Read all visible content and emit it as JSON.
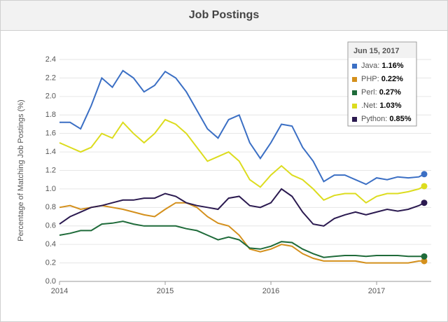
{
  "chart_data": {
    "type": "line",
    "title": "Job Postings",
    "y_label": "Percentage of Matching Job Postings (%)",
    "x": [
      2014.0,
      2014.1,
      2014.2,
      2014.3,
      2014.4,
      2014.5,
      2014.6,
      2014.7,
      2014.8,
      2014.9,
      2015.0,
      2015.1,
      2015.2,
      2015.3,
      2015.4,
      2015.5,
      2015.6,
      2015.7,
      2015.8,
      2015.9,
      2016.0,
      2016.1,
      2016.2,
      2016.3,
      2016.4,
      2016.5,
      2016.6,
      2016.7,
      2016.8,
      2016.9,
      2017.0,
      2017.1,
      2017.2,
      2017.3,
      2017.4,
      2017.45
    ],
    "xlim": [
      2014,
      2017.45
    ],
    "xticks": [
      2014,
      2015,
      2016,
      2017
    ],
    "ylim": [
      0,
      2.4
    ],
    "yticks": [
      {
        "value": 0,
        "label": "0.0"
      },
      0.2,
      0.4,
      0.6,
      0.8,
      {
        "value": 1,
        "label": "1.0"
      },
      1.2,
      1.4,
      1.6,
      1.8,
      {
        "value": 2,
        "label": "2.0"
      },
      2.2,
      2.4
    ],
    "grid": true,
    "series": [
      {
        "name": "Java",
        "color": "#3b6fc4",
        "values": [
          1.72,
          1.72,
          1.65,
          1.9,
          2.2,
          2.1,
          2.28,
          2.2,
          2.05,
          2.12,
          2.27,
          2.2,
          2.05,
          1.85,
          1.65,
          1.55,
          1.75,
          1.8,
          1.5,
          1.33,
          1.5,
          1.7,
          1.68,
          1.45,
          1.3,
          1.08,
          1.15,
          1.15,
          1.1,
          1.05,
          1.12,
          1.1,
          1.13,
          1.12,
          1.13,
          1.16
        ]
      },
      {
        "name": "PHP",
        "color": "#d4901c",
        "values": [
          0.8,
          0.82,
          0.78,
          0.8,
          0.82,
          0.8,
          0.78,
          0.75,
          0.72,
          0.7,
          0.78,
          0.85,
          0.85,
          0.8,
          0.7,
          0.63,
          0.6,
          0.5,
          0.35,
          0.32,
          0.35,
          0.4,
          0.38,
          0.3,
          0.25,
          0.22,
          0.22,
          0.22,
          0.22,
          0.2,
          0.2,
          0.2,
          0.2,
          0.2,
          0.22,
          0.22
        ]
      },
      {
        "name": "Perl",
        "color": "#1f6b3a",
        "values": [
          0.5,
          0.52,
          0.55,
          0.55,
          0.62,
          0.63,
          0.65,
          0.62,
          0.6,
          0.6,
          0.6,
          0.6,
          0.57,
          0.55,
          0.5,
          0.45,
          0.48,
          0.45,
          0.36,
          0.35,
          0.38,
          0.43,
          0.42,
          0.35,
          0.3,
          0.26,
          0.27,
          0.28,
          0.28,
          0.27,
          0.28,
          0.28,
          0.28,
          0.27,
          0.27,
          0.27
        ]
      },
      {
        "name": ".Net",
        "color": "#dcdc1e",
        "values": [
          1.5,
          1.45,
          1.4,
          1.45,
          1.6,
          1.55,
          1.72,
          1.6,
          1.5,
          1.6,
          1.75,
          1.7,
          1.6,
          1.45,
          1.3,
          1.35,
          1.4,
          1.3,
          1.1,
          1.02,
          1.15,
          1.25,
          1.15,
          1.1,
          1.0,
          0.88,
          0.93,
          0.95,
          0.95,
          0.85,
          0.92,
          0.95,
          0.95,
          0.97,
          1.0,
          1.03
        ]
      },
      {
        "name": "Python",
        "color": "#2b1a50",
        "values": [
          0.62,
          0.7,
          0.75,
          0.8,
          0.82,
          0.85,
          0.88,
          0.88,
          0.9,
          0.9,
          0.95,
          0.92,
          0.85,
          0.82,
          0.8,
          0.78,
          0.9,
          0.92,
          0.82,
          0.8,
          0.85,
          1.0,
          0.92,
          0.75,
          0.62,
          0.6,
          0.68,
          0.72,
          0.75,
          0.72,
          0.75,
          0.78,
          0.76,
          0.78,
          0.82,
          0.85
        ]
      }
    ],
    "tooltip": {
      "title": "Jun 15, 2017",
      "labels": [
        "1.16%",
        "0.22%",
        "0.27%",
        "1.03%",
        "0.85%"
      ]
    }
  }
}
